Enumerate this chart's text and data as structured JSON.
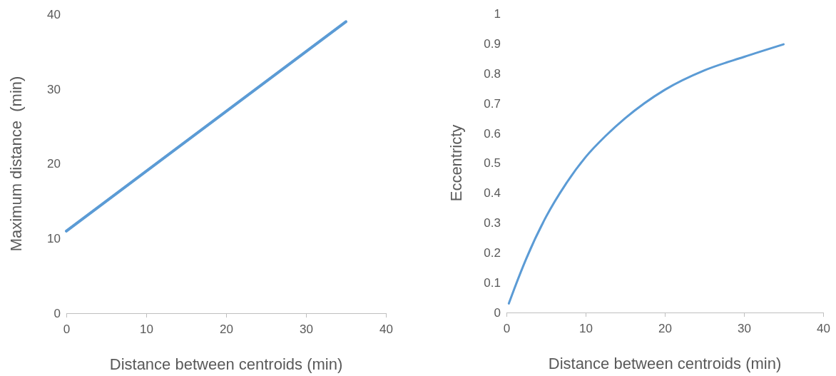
{
  "chart_data": [
    {
      "type": "line",
      "xlabel": "Distance between centroids (min)",
      "ylabel": "Maximum distance  (min)",
      "x": [
        0,
        35
      ],
      "series": [
        {
          "color": "#5b9bd5",
          "values": [
            11,
            39
          ]
        }
      ],
      "xlim": [
        0,
        40
      ],
      "xticks": [
        0,
        10,
        20,
        30,
        40
      ],
      "ylim": [
        0,
        40
      ],
      "yticks": [
        0,
        10,
        20,
        30,
        40
      ],
      "grid": false,
      "marker": "none",
      "line_style": "solid"
    },
    {
      "type": "line",
      "xlabel": "Distance between centroids (min)",
      "ylabel": "Eccentricty",
      "x": [
        0.3,
        1,
        2.5,
        5,
        7.5,
        10,
        12.5,
        15,
        20,
        25,
        30,
        35
      ],
      "series": [
        {
          "color": "#5b9bd5",
          "values": [
            0.03,
            0.08,
            0.18,
            0.32,
            0.43,
            0.52,
            0.59,
            0.65,
            0.745,
            0.81,
            0.855,
            0.897
          ]
        }
      ],
      "xlim": [
        0,
        40
      ],
      "xticks": [
        0,
        10,
        20,
        30,
        40
      ],
      "ylim": [
        0,
        1
      ],
      "yticks": [
        0,
        0.1,
        0.2,
        0.3,
        0.4,
        0.5,
        0.6,
        0.7,
        0.8,
        0.9,
        1
      ],
      "grid": false,
      "marker": "none",
      "line_style": "solid"
    }
  ]
}
